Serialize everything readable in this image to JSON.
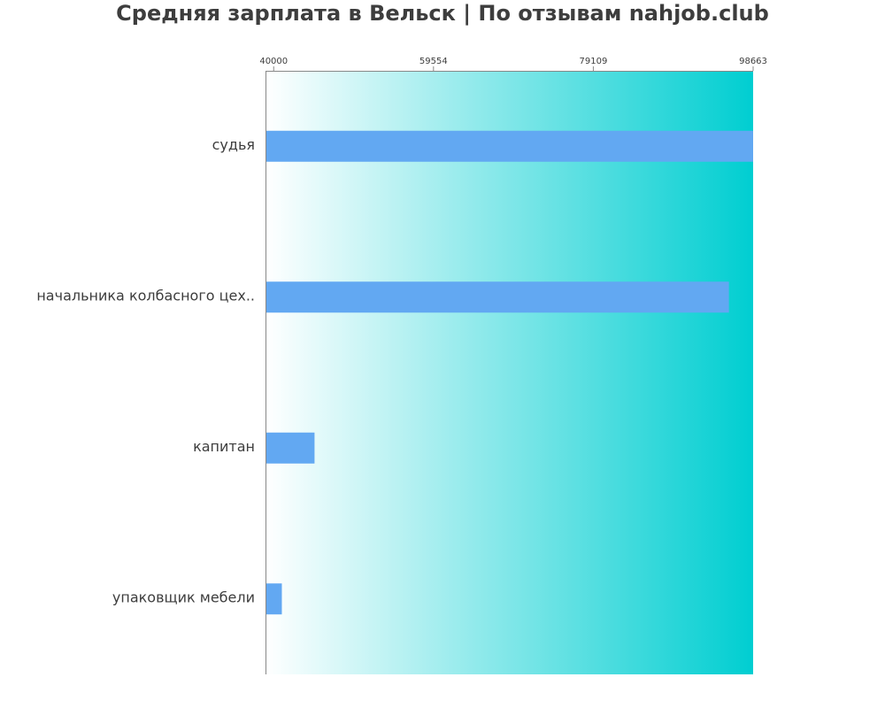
{
  "chart_data": {
    "type": "bar",
    "orientation": "horizontal",
    "title": "Средняя зарплата в Вельск | По отзывам nahjob.club",
    "categories": [
      "судья",
      "начальника колбасного цех..",
      "капитан",
      "упаковщик мебели"
    ],
    "values": [
      98663,
      95700,
      45000,
      41000
    ],
    "xlim": [
      39000,
      98663
    ],
    "x_ticks": [
      40000,
      59554,
      79109,
      98663
    ],
    "x_tick_labels": [
      "40000",
      "59554",
      "79109",
      "98663"
    ],
    "x_axis_position": "top",
    "grid": false,
    "legend": "none"
  },
  "colors": {
    "bar": "#62a8f2",
    "background_gradient_start": "#ffffff",
    "background_gradient_end": "#00ced1",
    "axis": "#888888",
    "text": "#3d3d3d"
  }
}
